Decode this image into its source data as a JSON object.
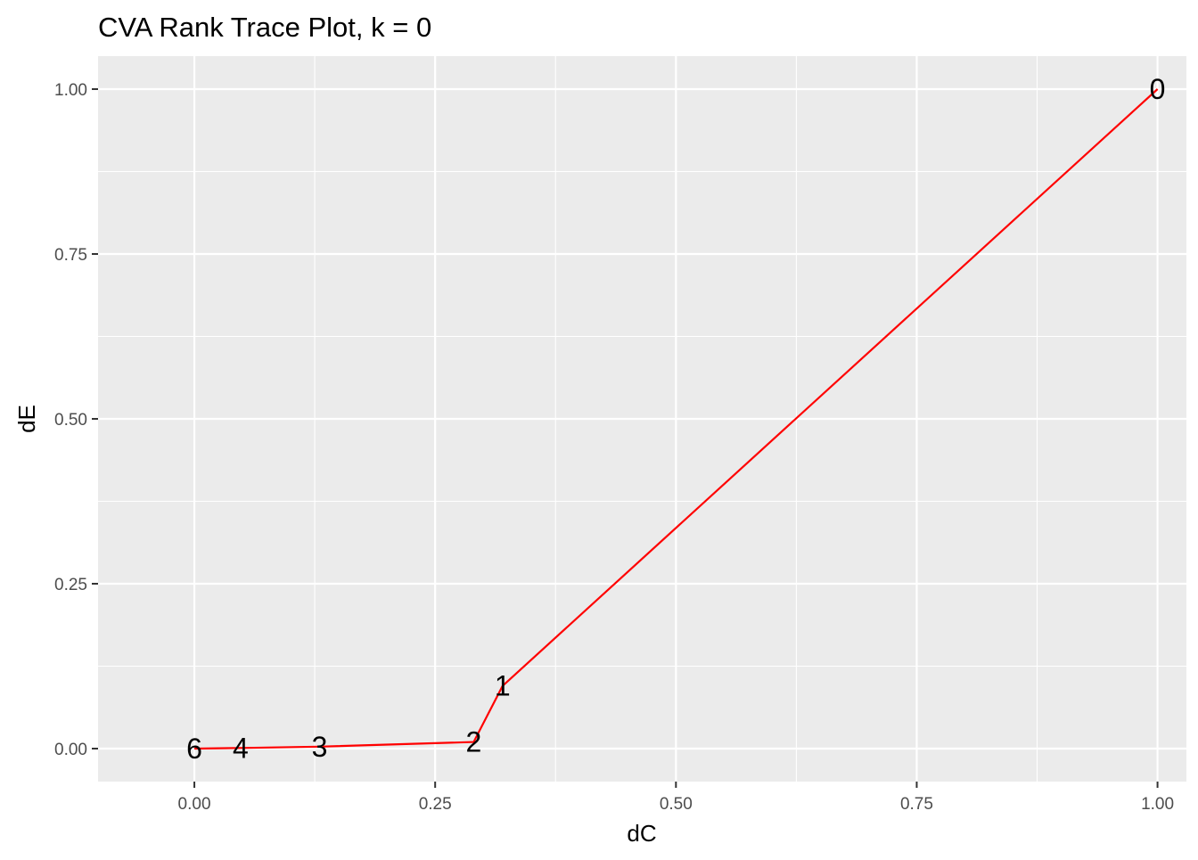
{
  "chart_data": {
    "type": "line",
    "title": "CVA Rank Trace Plot, k = 0",
    "xlabel": "dC",
    "ylabel": "dE",
    "xlim": [
      -0.1,
      1.03
    ],
    "ylim": [
      -0.05,
      1.05
    ],
    "x_ticks": [
      0.0,
      0.25,
      0.5,
      0.75,
      1.0
    ],
    "x_tick_labels": [
      "0.00",
      "0.25",
      "0.50",
      "0.75",
      "1.00"
    ],
    "y_ticks": [
      0.0,
      0.25,
      0.5,
      0.75,
      1.0
    ],
    "y_tick_labels": [
      "0.00",
      "0.25",
      "0.50",
      "0.75",
      "1.00"
    ],
    "grid": true,
    "line_color": "#ff0000",
    "panel_background": "#ebebeb",
    "points": [
      {
        "label": "0",
        "x": 1.0,
        "y": 1.0
      },
      {
        "label": "1",
        "x": 0.32,
        "y": 0.095
      },
      {
        "label": "2",
        "x": 0.29,
        "y": 0.01
      },
      {
        "label": "3",
        "x": 0.13,
        "y": 0.003
      },
      {
        "label": "4",
        "x": 0.048,
        "y": 0.001
      },
      {
        "label": "6",
        "x": 0.0,
        "y": 0.0
      }
    ]
  }
}
